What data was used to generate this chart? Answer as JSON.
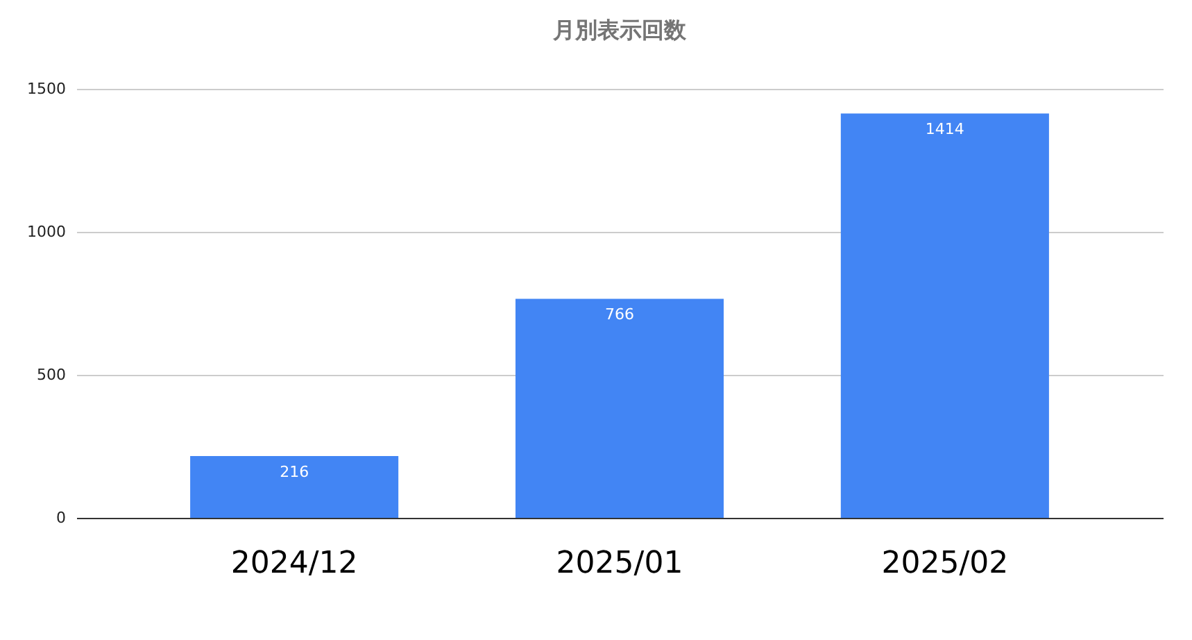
{
  "chart_data": {
    "type": "bar",
    "title": "月別表示回数",
    "categories": [
      "2024/12",
      "2025/01",
      "2025/02"
    ],
    "values": [
      216,
      766,
      1414
    ],
    "color": "#4285f4",
    "ylim": [
      0,
      1500
    ],
    "yticks": [
      0,
      500,
      1000,
      1500
    ],
    "grid": "y",
    "data_labels": true
  }
}
